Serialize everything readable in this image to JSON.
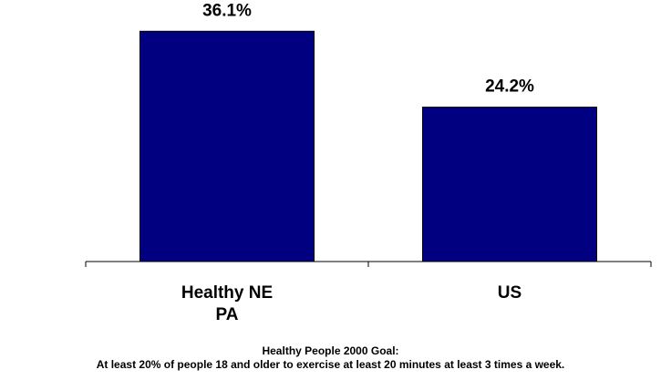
{
  "chart_data": {
    "type": "bar",
    "categories": [
      "Healthy NE PA",
      "US"
    ],
    "category_lines": [
      [
        "Healthy NE",
        "PA"
      ],
      [
        "US"
      ]
    ],
    "values": [
      36.1,
      24.2
    ],
    "data_labels": [
      "36.1%",
      "24.2%"
    ],
    "ylim": [
      0,
      40
    ],
    "grid": false,
    "bar_color": "#000080"
  },
  "footnote": {
    "line1": "Healthy People 2000 Goal:",
    "line2": "At least 20% of people 18 and older to exercise at least 20 minutes at least 3 times a week."
  }
}
